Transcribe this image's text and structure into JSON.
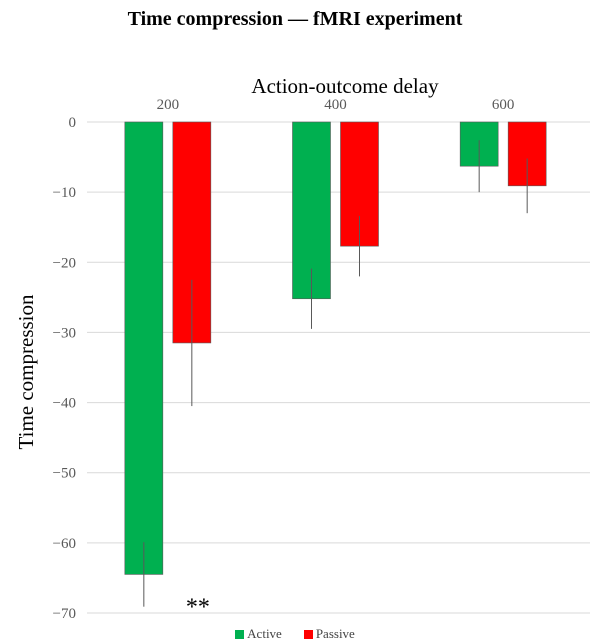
{
  "chart_data": {
    "type": "bar",
    "title": "Time compression — fMRI experiment",
    "xlabel": "Action-outcome delay",
    "ylabel": "Time compression",
    "categories": [
      "200",
      "400",
      "600"
    ],
    "ylim": [
      -70,
      0
    ],
    "yticks": [
      0,
      -10,
      -20,
      -30,
      -40,
      -50,
      -60,
      -70
    ],
    "x_axis_position": "top",
    "grid": true,
    "legend_position": "bottom-center",
    "series": [
      {
        "name": "Active",
        "color": "#00b050",
        "values": [
          -64.5,
          -25.2,
          -6.3
        ],
        "error": [
          4.6,
          4.3,
          3.7
        ]
      },
      {
        "name": "Passive",
        "color": "#ff0000",
        "values": [
          -31.5,
          -17.7,
          -9.1
        ],
        "error": [
          9.0,
          4.3,
          3.9
        ]
      }
    ],
    "annotations": [
      {
        "text": "**",
        "category": "200",
        "near_value": -68.5
      }
    ]
  }
}
